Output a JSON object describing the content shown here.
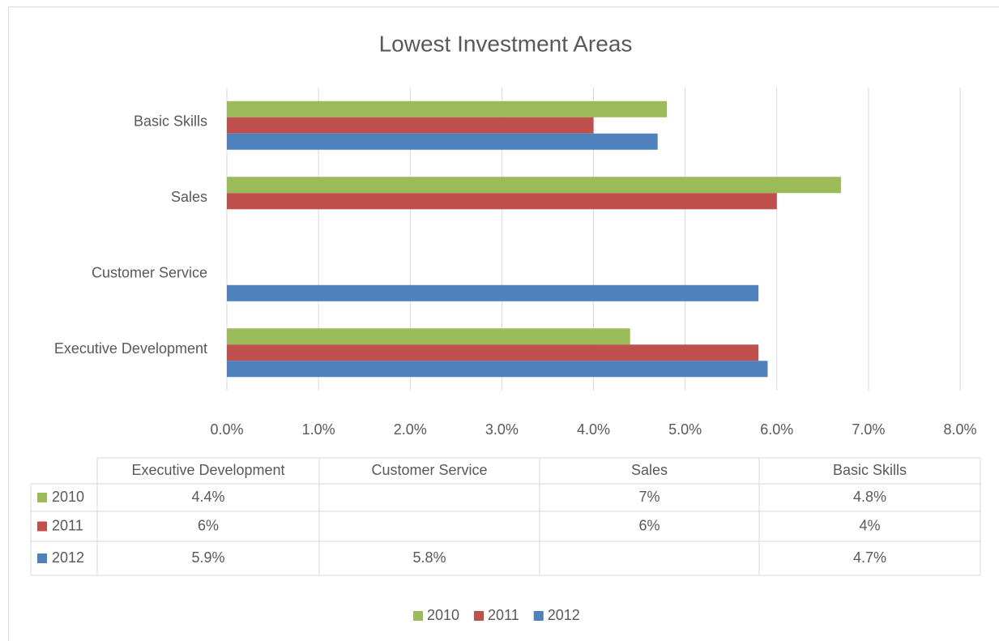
{
  "chart_data": {
    "type": "bar",
    "orientation": "horizontal",
    "title": "Lowest Investment Areas",
    "categories": [
      "Executive Development",
      "Customer Service",
      "Sales",
      "Basic Skills"
    ],
    "series": [
      {
        "name": "2010",
        "color": "#9bbb59",
        "values": [
          4.4,
          null,
          6.7,
          4.8
        ],
        "value_labels": [
          "4.4%",
          null,
          "7%",
          "4.8%"
        ]
      },
      {
        "name": "2011",
        "color": "#c0504d",
        "values": [
          5.8,
          null,
          6.0,
          4.0
        ],
        "value_labels": [
          "6%",
          null,
          "6%",
          "4%"
        ]
      },
      {
        "name": "2012",
        "color": "#4f81bd",
        "values": [
          5.9,
          5.8,
          null,
          4.7
        ],
        "value_labels": [
          "5.9%",
          "5.8%",
          null,
          "4.7%"
        ]
      }
    ],
    "xlim": [
      0,
      8
    ],
    "xticks": [
      {
        "value": 0,
        "label": "0.0%"
      },
      {
        "value": 1,
        "label": "1.0%"
      },
      {
        "value": 2,
        "label": "2.0%"
      },
      {
        "value": 3,
        "label": "3.0%"
      },
      {
        "value": 4,
        "label": "4.0%"
      },
      {
        "value": 5,
        "label": "5.0%"
      },
      {
        "value": 6,
        "label": "6.0%"
      },
      {
        "value": 7,
        "label": "7.0%"
      },
      {
        "value": 8,
        "label": "8.0%"
      }
    ],
    "grid": true,
    "legend": "bottom",
    "data_table": true
  }
}
